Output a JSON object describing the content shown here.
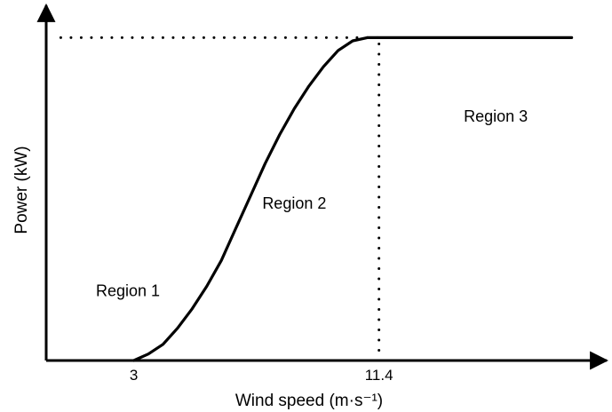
{
  "chart_data": {
    "type": "line",
    "title": "",
    "xlabel": "Wind speed (m·s⁻¹)",
    "ylabel": "Power (kW)",
    "x_ticks": [
      {
        "value": 3,
        "label": "3"
      },
      {
        "value": 11.4,
        "label": "11.4"
      }
    ],
    "xlim": [
      0,
      19.2
    ],
    "ylim": [
      0,
      1.1
    ],
    "rated_power": 1.0,
    "series": [
      {
        "values": [
          {
            "x": 3.0,
            "y": 0.0
          },
          {
            "x": 3.5,
            "y": 0.02
          },
          {
            "x": 4.0,
            "y": 0.05
          },
          {
            "x": 4.5,
            "y": 0.1
          },
          {
            "x": 5.0,
            "y": 0.16
          },
          {
            "x": 5.5,
            "y": 0.23
          },
          {
            "x": 6.0,
            "y": 0.31
          },
          {
            "x": 6.5,
            "y": 0.41
          },
          {
            "x": 7.0,
            "y": 0.51
          },
          {
            "x": 7.5,
            "y": 0.61
          },
          {
            "x": 8.0,
            "y": 0.7
          },
          {
            "x": 8.5,
            "y": 0.78
          },
          {
            "x": 9.0,
            "y": 0.85
          },
          {
            "x": 9.5,
            "y": 0.91
          },
          {
            "x": 10.0,
            "y": 0.96
          },
          {
            "x": 10.5,
            "y": 0.99
          },
          {
            "x": 11.0,
            "y": 1.0
          },
          {
            "x": 11.4,
            "y": 1.0
          },
          {
            "x": 16.0,
            "y": 1.0
          },
          {
            "x": 18.0,
            "y": 1.0
          }
        ]
      }
    ],
    "reference_lines": [
      {
        "orientation": "horizontal",
        "y": 1.0,
        "x_from": 0.5,
        "x_to": 11.4,
        "style": "dotted"
      },
      {
        "orientation": "vertical",
        "x": 11.4,
        "y_from": 0,
        "y_to": 1.0,
        "style": "dotted"
      }
    ],
    "annotations": [
      {
        "text": "Region 1",
        "x": 2.8,
        "y": 0.2
      },
      {
        "text": "Region 2",
        "x": 8.5,
        "y": 0.47
      },
      {
        "text": "Region 3",
        "x": 15.4,
        "y": 0.74
      }
    ],
    "grid": false,
    "legend": "none",
    "colors": {
      "line": "#000000",
      "axis": "#000000",
      "background": "#ffffff"
    }
  }
}
